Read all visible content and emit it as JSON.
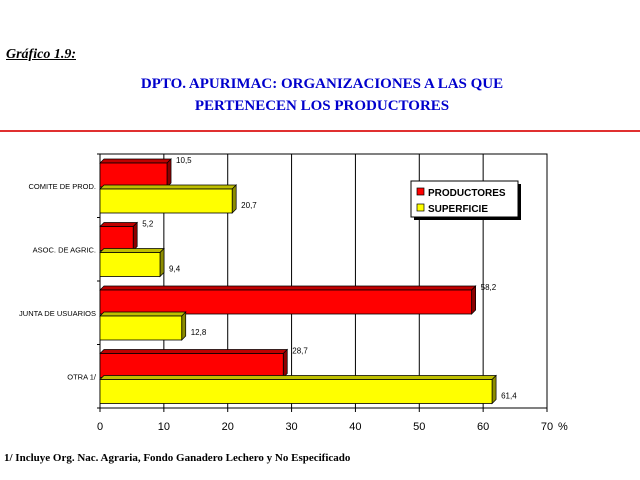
{
  "figure_label": "Gráfico 1.9:",
  "title_line1": "DPTO. APURIMAC: ORGANIZACIONES A LAS QUE",
  "title_line2": "PERTENECEN LOS PRODUCTORES",
  "footnote": "1/ Incluye Org. Nac. Agraria, Fondo Ganadero Lechero y No Especificado",
  "colors": {
    "productores": "#ff0000",
    "superficie": "#ffff00",
    "rule": "#e03030",
    "title": "#0000cc"
  },
  "chart_data": {
    "type": "bar",
    "orientation": "horizontal",
    "categories": [
      "COMITE DE PROD.",
      "ASOC. DE AGRIC.",
      "JUNTA DE USUARIOS",
      "OTRA 1/"
    ],
    "series": [
      {
        "name": "PRODUCTORES",
        "values": [
          10.5,
          5.2,
          58.2,
          28.7
        ],
        "labels": [
          "10,5",
          "5,2",
          "58,2",
          "28,7"
        ]
      },
      {
        "name": "SUPERFICIE",
        "values": [
          20.7,
          9.4,
          12.8,
          61.4
        ],
        "labels": [
          "20,7",
          "9,4",
          "12,8",
          "61,4"
        ]
      }
    ],
    "xlim": [
      0,
      70
    ],
    "xticks": [
      0,
      10,
      20,
      30,
      40,
      50,
      60,
      70
    ],
    "xunit": "%",
    "grid": true,
    "legend": "top-right"
  }
}
